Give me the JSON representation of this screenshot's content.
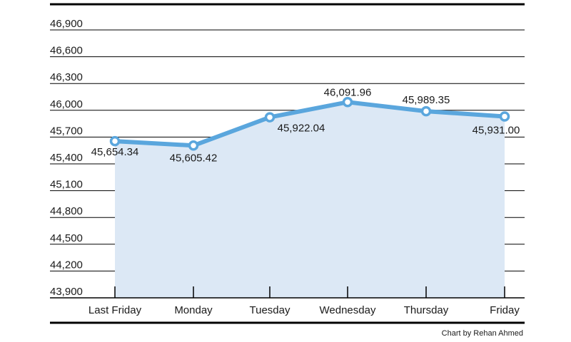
{
  "chart_data": {
    "type": "area",
    "categories": [
      "Last Friday",
      "Monday",
      "Tuesday",
      "Wednesday",
      "Thursday",
      "Friday"
    ],
    "values": [
      45654.34,
      45605.42,
      45922.04,
      46091.96,
      45989.35,
      45931.0
    ],
    "value_labels": [
      "45,654.34",
      "45,605.42",
      "45,922.04",
      "46,091.96",
      "45,989.35",
      "45,931.00"
    ],
    "yticks": [
      43900,
      44200,
      44500,
      44800,
      45100,
      45400,
      45700,
      46000,
      46300,
      46600,
      46900
    ],
    "ytick_labels": [
      "43,900",
      "44,200",
      "44,500",
      "44,800",
      "45,100",
      "45,400",
      "45,700",
      "46,000",
      "46,300",
      "46,600",
      "46,900"
    ],
    "ylim": [
      43900,
      46900
    ],
    "grid": true,
    "line_color": "#5aa6dd",
    "fill_color": "#dce8f5"
  },
  "credit": "Chart by Rehan Ahmed"
}
